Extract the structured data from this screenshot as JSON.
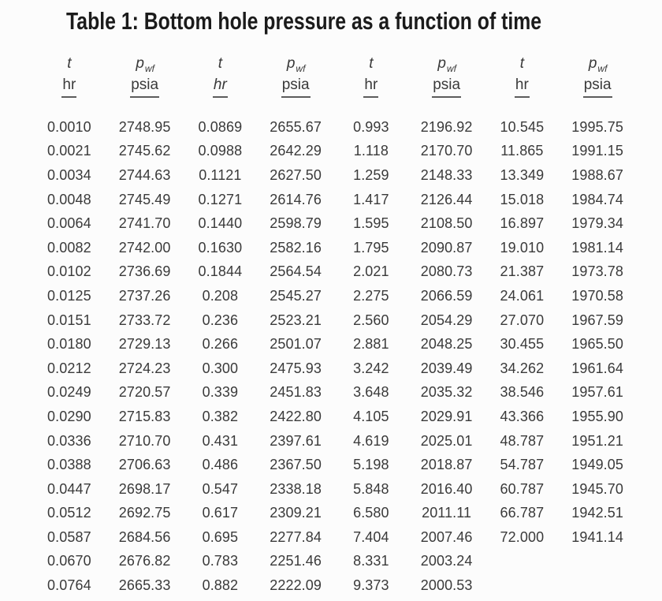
{
  "title": "Table 1: Bottom hole pressure as a function of time",
  "colors": {
    "background": "#fcfcfc",
    "title_text": "#1b1b1b",
    "body_text": "#3a3a3a",
    "unit_rule": "#5c5c5c"
  },
  "chart_data": {
    "type": "table",
    "title": "Table 1: Bottom hole pressure as a function of time",
    "column_headers": [
      {
        "symbol": "t",
        "sub": "",
        "unit": "hr",
        "unit_italic": false
      },
      {
        "symbol": "p",
        "sub": "wf",
        "unit": "psia",
        "unit_italic": false
      },
      {
        "symbol": "t",
        "sub": "",
        "unit": "hr",
        "unit_italic": true
      },
      {
        "symbol": "p",
        "sub": "wf",
        "unit": "psia",
        "unit_italic": false
      },
      {
        "symbol": "t",
        "sub": "",
        "unit": "hr",
        "unit_italic": false
      },
      {
        "symbol": "p",
        "sub": "wf",
        "unit": "psia",
        "unit_italic": false
      },
      {
        "symbol": "t",
        "sub": "",
        "unit": "hr",
        "unit_italic": false
      },
      {
        "symbol": "p",
        "sub": "wf",
        "unit": "psia",
        "unit_italic": false
      }
    ],
    "rows": [
      [
        "0.0010",
        "2748.95",
        "0.0869",
        "2655.67",
        "0.993",
        "2196.92",
        "10.545",
        "1995.75"
      ],
      [
        "0.0021",
        "2745.62",
        "0.0988",
        "2642.29",
        "1.118",
        "2170.70",
        "11.865",
        "1991.15"
      ],
      [
        "0.0034",
        "2744.63",
        "0.1121",
        "2627.50",
        "1.259",
        "2148.33",
        "13.349",
        "1988.67"
      ],
      [
        "0.0048",
        "2745.49",
        "0.1271",
        "2614.76",
        "1.417",
        "2126.44",
        "15.018",
        "1984.74"
      ],
      [
        "0.0064",
        "2741.70",
        "0.1440",
        "2598.79",
        "1.595",
        "2108.50",
        "16.897",
        "1979.34"
      ],
      [
        "0.0082",
        "2742.00",
        "0.1630",
        "2582.16",
        "1.795",
        "2090.87",
        "19.010",
        "1981.14"
      ],
      [
        "0.0102",
        "2736.69",
        "0.1844",
        "2564.54",
        "2.021",
        "2080.73",
        "21.387",
        "1973.78"
      ],
      [
        "0.0125",
        "2737.26",
        "0.208",
        "2545.27",
        "2.275",
        "2066.59",
        "24.061",
        "1970.58"
      ],
      [
        "0.0151",
        "2733.72",
        "0.236",
        "2523.21",
        "2.560",
        "2054.29",
        "27.070",
        "1967.59"
      ],
      [
        "0.0180",
        "2729.13",
        "0.266",
        "2501.07",
        "2.881",
        "2048.25",
        "30.455",
        "1965.50"
      ],
      [
        "0.0212",
        "2724.23",
        "0.300",
        "2475.93",
        "3.242",
        "2039.49",
        "34.262",
        "1961.64"
      ],
      [
        "0.0249",
        "2720.57",
        "0.339",
        "2451.83",
        "3.648",
        "2035.32",
        "38.546",
        "1957.61"
      ],
      [
        "0.0290",
        "2715.83",
        "0.382",
        "2422.80",
        "4.105",
        "2029.91",
        "43.366",
        "1955.90"
      ],
      [
        "0.0336",
        "2710.70",
        "0.431",
        "2397.61",
        "4.619",
        "2025.01",
        "48.787",
        "1951.21"
      ],
      [
        "0.0388",
        "2706.63",
        "0.486",
        "2367.50",
        "5.198",
        "2018.87",
        "54.787",
        "1949.05"
      ],
      [
        "0.0447",
        "2698.17",
        "0.547",
        "2338.18",
        "5.848",
        "2016.40",
        "60.787",
        "1945.70"
      ],
      [
        "0.0512",
        "2692.75",
        "0.617",
        "2309.21",
        "6.580",
        "2011.11",
        "66.787",
        "1942.51"
      ],
      [
        "0.0587",
        "2684.56",
        "0.695",
        "2277.84",
        "7.404",
        "2007.46",
        "72.000",
        "1941.14"
      ],
      [
        "0.0670",
        "2676.82",
        "0.783",
        "2251.46",
        "8.331",
        "2003.24",
        "",
        ""
      ],
      [
        "0.0764",
        "2665.33",
        "0.882",
        "2222.09",
        "9.373",
        "2000.53",
        "",
        ""
      ]
    ]
  }
}
